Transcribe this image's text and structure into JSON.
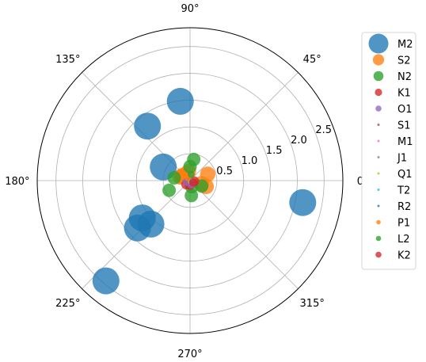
{
  "chart_data": {
    "type": "scatter",
    "projection": "polar",
    "r_ticks": [
      0.5,
      1.0,
      1.5,
      2.0,
      2.5
    ],
    "r_tick_labels": [
      "0.5",
      "1.0",
      "1.5",
      "2.0",
      "2.5"
    ],
    "r_max": 2.85,
    "theta_ticks": [
      0,
      45,
      90,
      135,
      180,
      225,
      270,
      315
    ],
    "theta_tick_labels": [
      "0°",
      "45°",
      "90°",
      "135°",
      "180°",
      "225°",
      "270°",
      "315°"
    ],
    "grid": true,
    "legend_position": "upper right, outside",
    "series": [
      {
        "name": "M2",
        "color": "#1f77b4",
        "size": 1.0,
        "points": [
          {
            "theta": 97,
            "r": 1.49
          },
          {
            "theta": 128,
            "r": 1.29
          },
          {
            "theta": 153,
            "r": 0.56
          },
          {
            "theta": 222,
            "r": 1.32
          },
          {
            "theta": 218,
            "r": 1.13
          },
          {
            "theta": 228,
            "r": 1.09
          },
          {
            "theta": 230,
            "r": 2.44
          },
          {
            "theta": 349,
            "r": 2.14
          }
        ]
      },
      {
        "name": "S2",
        "color": "#ff7f0e",
        "size": 0.57,
        "points": [
          {
            "theta": 20,
            "r": 0.35
          },
          {
            "theta": 100,
            "r": 0.17
          },
          {
            "theta": 150,
            "r": 0.16
          },
          {
            "theta": 147,
            "r": 0.17
          },
          {
            "theta": 160,
            "r": 0.19
          },
          {
            "theta": 340,
            "r": 0.32
          },
          {
            "theta": 345,
            "r": 0.22
          }
        ]
      },
      {
        "name": "N2",
        "color": "#2ca02c",
        "size": 0.5,
        "points": [
          {
            "theta": 80,
            "r": 0.4
          },
          {
            "theta": 90,
            "r": 0.26
          },
          {
            "theta": 170,
            "r": 0.3
          },
          {
            "theta": 205,
            "r": 0.43
          },
          {
            "theta": 275,
            "r": 0.28
          },
          {
            "theta": 335,
            "r": 0.24
          },
          {
            "theta": 285,
            "r": 0.12
          }
        ]
      },
      {
        "name": "K1",
        "color": "#d62728",
        "size": 0.37,
        "points": [
          {
            "theta": 350,
            "r": 0.08
          },
          {
            "theta": 225,
            "r": 0.1
          },
          {
            "theta": 270,
            "r": 0.08
          }
        ]
      },
      {
        "name": "O1",
        "color": "#9467bd",
        "size": 0.3,
        "points": [
          {
            "theta": 200,
            "r": 0.07
          },
          {
            "theta": 290,
            "r": 0.07
          }
        ]
      },
      {
        "name": "S1",
        "color": "#8c564b",
        "size": 0.12,
        "points": [
          {
            "theta": 120,
            "r": 0.05
          }
        ]
      },
      {
        "name": "M1",
        "color": "#e377c2",
        "size": 0.12,
        "points": [
          {
            "theta": 45,
            "r": 0.03
          }
        ]
      },
      {
        "name": "J1",
        "color": "#7f7f7f",
        "size": 0.12,
        "points": [
          {
            "theta": 60,
            "r": 0.04
          }
        ]
      },
      {
        "name": "Q1",
        "color": "#bcbd22",
        "size": 0.12,
        "points": [
          {
            "theta": 250,
            "r": 0.03
          }
        ]
      },
      {
        "name": "T2",
        "color": "#17becf",
        "size": 0.12,
        "points": [
          {
            "theta": 10,
            "r": 0.03
          }
        ]
      },
      {
        "name": "R2",
        "color": "#1f77b4",
        "size": 0.12,
        "points": [
          {
            "theta": 300,
            "r": 0.03
          }
        ]
      },
      {
        "name": "P1",
        "color": "#ff7f0e",
        "size": 0.22,
        "points": [
          {
            "theta": 135,
            "r": 0.06
          }
        ]
      },
      {
        "name": "L2",
        "color": "#2ca02c",
        "size": 0.26,
        "points": [
          {
            "theta": 80,
            "r": 0.12
          }
        ]
      },
      {
        "name": "K2",
        "color": "#d62728",
        "size": 0.3,
        "points": [
          {
            "theta": 330,
            "r": 0.07
          }
        ]
      }
    ]
  }
}
